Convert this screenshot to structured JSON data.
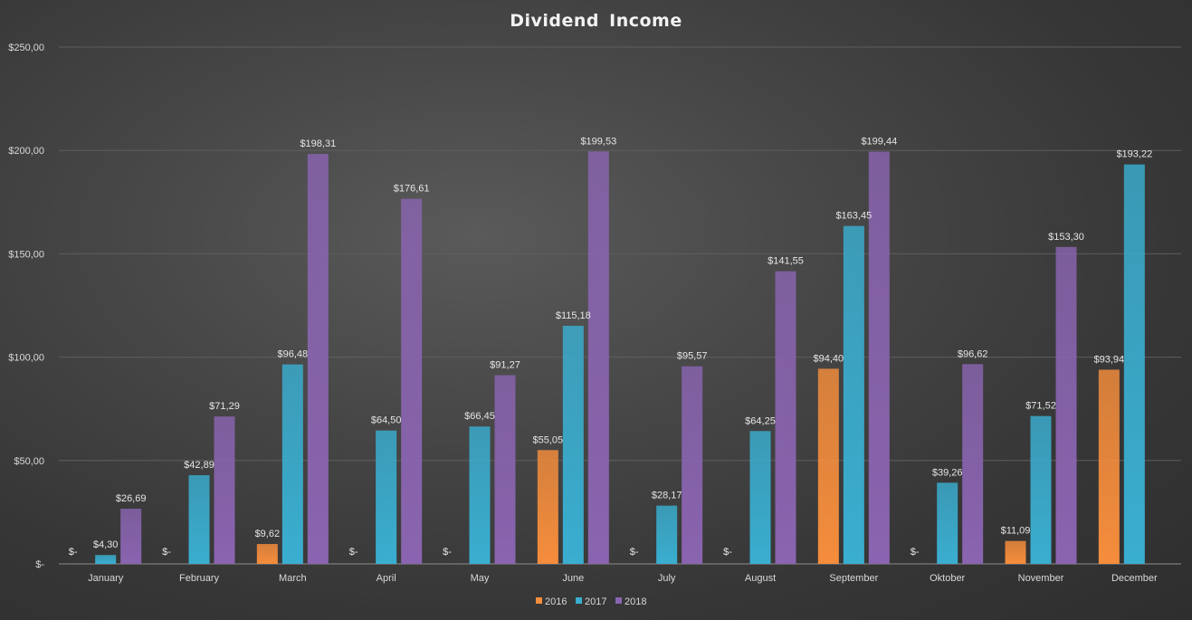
{
  "chart_data": {
    "type": "bar",
    "title": "Dividend Income",
    "xlabel": "",
    "ylabel": "",
    "ylim": [
      0,
      250
    ],
    "yticks": [
      0,
      50,
      100,
      150,
      200,
      250
    ],
    "ytick_labels": [
      "$-",
      "$50,00",
      "$100,00",
      "$150,00",
      "$200,00",
      "$250,00"
    ],
    "grid": true,
    "legend_position": "bottom",
    "categories": [
      "January",
      "February",
      "March",
      "April",
      "May",
      "June",
      "July",
      "August",
      "September",
      "Oktober",
      "November",
      "December"
    ],
    "series": [
      {
        "name": "2016",
        "color": "#f58d3c",
        "values": [
          0,
          0,
          9.62,
          0,
          0,
          55.05,
          0,
          0,
          94.4,
          0,
          11.09,
          93.94
        ],
        "labels": [
          "$-",
          "$-",
          "$9,62",
          "$-",
          "$-",
          "$55,05",
          "$-",
          "$-",
          "$94,40",
          "$-",
          "$11,09",
          "$93,94"
        ]
      },
      {
        "name": "2017",
        "color": "#3aaed0",
        "values": [
          4.3,
          42.89,
          96.48,
          64.5,
          66.45,
          115.18,
          28.17,
          64.25,
          163.45,
          39.26,
          71.52,
          193.22
        ],
        "labels": [
          "$4,30",
          "$42,89",
          "$96,48",
          "$64,50",
          "$66,45",
          "$115,18",
          "$28,17",
          "$64,25",
          "$163,45",
          "$39,26",
          "$71,52",
          "$193,22"
        ]
      },
      {
        "name": "2018",
        "color": "#8a64b0",
        "values": [
          26.69,
          71.29,
          198.31,
          176.61,
          91.27,
          199.53,
          95.57,
          141.55,
          199.44,
          96.62,
          153.3,
          null
        ],
        "labels": [
          "$26,69",
          "$71,29",
          "$198,31",
          "$176,61",
          "$91,27",
          "$199,53",
          "$95,57",
          "$141,55",
          "$199,44",
          "$96,62",
          "$153,30",
          ""
        ]
      }
    ]
  }
}
